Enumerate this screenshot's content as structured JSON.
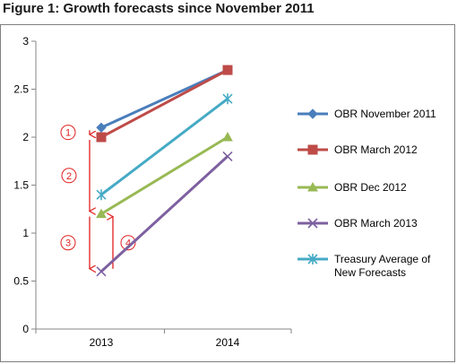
{
  "figure_title": "Figure 1: Growth forecasts since November 2011",
  "chart_data": {
    "type": "line",
    "categories": [
      "2013",
      "2014"
    ],
    "ylim": [
      0,
      3
    ],
    "yticks": [
      "0",
      "0.5",
      "1",
      "1.5",
      "2",
      "2.5",
      "3"
    ],
    "grid": false,
    "legend_position": "right",
    "series": [
      {
        "name": "OBR November 2011",
        "values": [
          2.1,
          2.7
        ],
        "color": "#4a7ebb",
        "marker": "diamond"
      },
      {
        "name": "OBR March 2012",
        "values": [
          2.0,
          2.7
        ],
        "color": "#be4b48",
        "marker": "square"
      },
      {
        "name": "OBR Dec 2012",
        "values": [
          1.2,
          2.0
        ],
        "color": "#98b954",
        "marker": "triangle"
      },
      {
        "name": "OBR March 2013",
        "values": [
          0.6,
          1.8
        ],
        "color": "#7d60a0",
        "marker": "x"
      },
      {
        "name": "Treasury Average  of New Forecasts",
        "values": [
          1.4,
          2.4
        ],
        "color": "#46aac5",
        "marker": "star"
      }
    ],
    "annotations": [
      {
        "label": "①",
        "arrow": "down",
        "from": 2.1,
        "to": 2.0
      },
      {
        "label": "②",
        "arrow": "down",
        "from": 2.0,
        "to": 1.2
      },
      {
        "label": "③",
        "arrow": "down",
        "from": 1.2,
        "to": 0.6
      },
      {
        "label": "④",
        "arrow": "up",
        "from": 0.6,
        "to": 1.2
      }
    ]
  }
}
